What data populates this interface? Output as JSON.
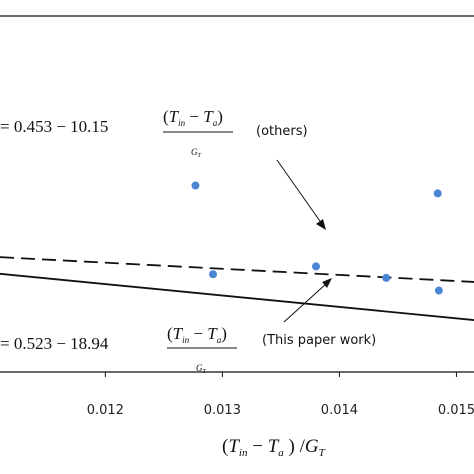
{
  "chart_data": {
    "type": "scatter",
    "title": "",
    "xlabel_parts": {
      "open": "(",
      "T": "T",
      "in": "in",
      "minus": " − ",
      "T2": "T",
      "a": "a",
      "close": " ) /",
      "G": "G",
      "Gsub": "T"
    },
    "ylabel": "",
    "x_tick_labels": [
      "0.012",
      "0.013",
      "0.014",
      "0.015"
    ],
    "x_ticks": [
      0.012,
      0.013,
      0.014,
      0.015
    ],
    "xlim": [
      0.0111,
      0.01515
    ],
    "ylim": [
      0.15,
      0.74
    ],
    "grid": false,
    "colors": {
      "points": "#4a86d4",
      "lines": "#111111"
    },
    "series": [
      {
        "kind": "points",
        "points": [
          {
            "x": 0.01277,
            "y": 0.459
          },
          {
            "x": 0.01292,
            "y": 0.312
          },
          {
            "x": 0.0138,
            "y": 0.325
          },
          {
            "x": 0.0144,
            "y": 0.306
          },
          {
            "x": 0.01484,
            "y": 0.446
          },
          {
            "x": 0.01485,
            "y": 0.285
          }
        ]
      },
      {
        "kind": "line",
        "style": "dashed",
        "intercept": 0.453,
        "slope": -10.15
      },
      {
        "kind": "line",
        "style": "solid",
        "intercept": 0.523,
        "slope": -18.94
      }
    ],
    "annotations": {
      "eq_top": {
        "lhs": "= 0.453 − 10.15",
        "num_open": "(",
        "T": "T",
        "in": "in",
        "minus": " − ",
        "T2": "T",
        "a": "a",
        "num_close": ")",
        "G": "G",
        "Gsub": "T"
      },
      "eq_bottom": {
        "lhs": "= 0.523 − 18.94",
        "num_open": "(",
        "T": "T",
        "in": "in",
        "minus": " − ",
        "T2": "T",
        "a": "a",
        "num_close": ")",
        "G": "G",
        "Gsub": "T"
      },
      "label_top": "(others)",
      "label_bottom": "(This paper work)"
    }
  }
}
